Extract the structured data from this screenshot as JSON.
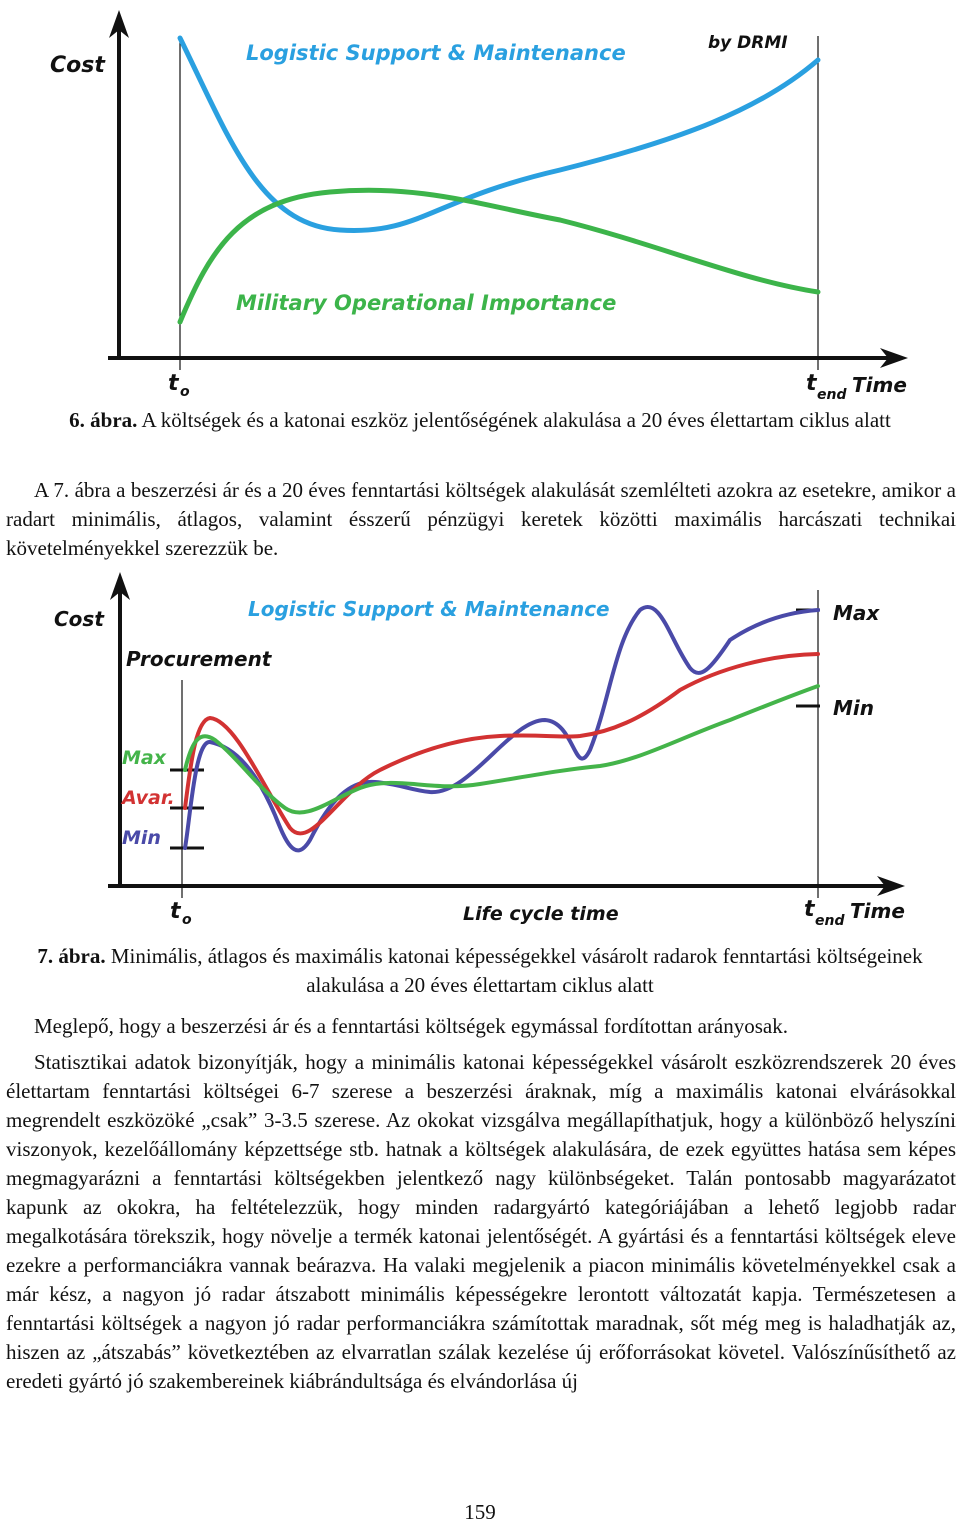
{
  "figure6": {
    "cost_label": "Cost",
    "lsm_label": "Logistic Support & Maintenance",
    "credit": "by DRMI",
    "moi_label": "Military Operational Importance",
    "t0_main": "t",
    "t0_sub": "o",
    "tend_main": "t",
    "tend_sub": "end",
    "time_label": "Time",
    "colors": {
      "lsm": "#2aa0e0",
      "moi": "#3cb44a"
    }
  },
  "caption6": {
    "number": "6. ábra.",
    "text": "A költségek és a katonai eszköz jelentőségének alakulása a 20 éves élettartam ciklus alatt"
  },
  "paragraph1": "A 7. ábra a beszerzési ár és a 20 éves fenntartási költségek alakulását szemlélteti azokra az esetekre, amikor a radart minimális, átlagos, valamint ésszerű pénzügyi keretek közötti maximális harcászati technikai követelményekkel szerezzük be.",
  "figure7": {
    "cost_label": "Cost",
    "lsm_label": "Logistic Support & Maintenance",
    "procurement_label": "Procurement",
    "max_left": "Max",
    "avar_left": "Avar.",
    "min_left": "Min",
    "max_right": "Max",
    "min_right": "Min",
    "t0_main": "t",
    "t0_sub": "o",
    "lifecycle_label": "Life cycle time",
    "tend_main": "t",
    "tend_sub": "end",
    "time_label": "Time",
    "colors": {
      "max": "#4a4aa8",
      "avar": "#d23232",
      "min": "#44b44a"
    }
  },
  "caption7": {
    "number": "7. ábra.",
    "text": "Minimális, átlagos és maximális katonai képességekkel vásárolt radarok fenntartási költségeinek alakulása a 20 éves élettartam ciklus alatt"
  },
  "paragraph2": "Meglepő, hogy a beszerzési ár és a fenntartási költségek egymással fordítottan arányosak.",
  "paragraph3": "Statisztikai adatok bizonyítják, hogy a minimális katonai képességekkel vásárolt eszközrendszerek 20 éves élettartam fenntartási költségei 6-7 szerese a beszerzési áraknak, míg a maximális katonai elvárásokkal megrendelt eszközöké „csak” 3-3.5 szerese. Az okokat vizsgálva megállapíthatjuk, hogy a különböző helyszíni viszonyok, kezelőállomány képzettsége stb. hatnak a költségek alakulására, de ezek együttes hatása sem képes megmagyarázni a fenntartási költségekben jelentkező nagy különbségeket. Talán pontosabb magyarázatot kapunk az okokra, ha feltételezzük, hogy minden radargyártó kategóriájában a lehető legjobb radar megalkotására törekszik, hogy növelje a termék katonai jelentőségét. A gyártási és a fenntartási költségek eleve ezekre a performanciákra vannak beárazva. Ha valaki megjelenik a piacon minimális követelményekkel csak a már kész, a nagyon jó radar átszabott minimális képességekre lerontott változatát kapja. Természetesen a fenntartási költségek a nagyon jó radar performanciákra számítottak maradnak, sőt még meg is haladhatják az, hiszen az „átszabás” következtében az elvarratlan szálak kezelése új erőforrásokat követel. Valószínűsíthető az eredeti gyártó jó szakembereinek kiábrándultsága és elvándorlása új",
  "page_number": "159"
}
